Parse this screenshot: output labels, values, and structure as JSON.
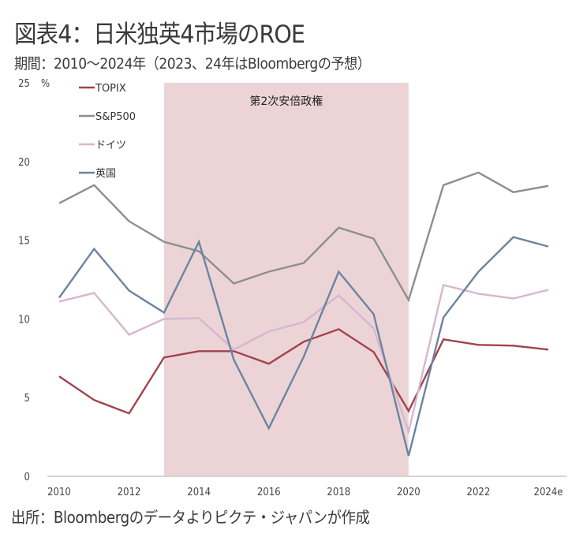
{
  "header": {
    "title": "図表4：日米独英4市場のROE",
    "subtitle": "期間：2010～2024年（2023、24年はBloombergの予想）"
  },
  "footer": {
    "source": "出所：Bloombergのデータよりピクテ・ジャパンが作成"
  },
  "chart_data": {
    "type": "line",
    "title": "日米独英4市場のROE",
    "xlabel": "",
    "ylabel": "%",
    "x": [
      2010,
      2011,
      2012,
      2013,
      2014,
      2015,
      2016,
      2017,
      2018,
      2019,
      2020,
      2021,
      2022,
      2023,
      2024
    ],
    "x_tick_labels": [
      "2010",
      "2012",
      "2014",
      "2016",
      "2018",
      "2020",
      "2022",
      "2024e"
    ],
    "x_tick_values": [
      2010,
      2012,
      2014,
      2016,
      2018,
      2020,
      2022,
      2024
    ],
    "y_ticks": [
      0,
      5,
      10,
      15,
      20,
      25
    ],
    "y_unit": "%",
    "ylim": [
      0,
      25
    ],
    "xlim": [
      2010,
      2024
    ],
    "grid": false,
    "legend_position": "top-left",
    "shaded_region": {
      "start": 2013,
      "end": 2020,
      "label": "第2次安倍政権",
      "color": "#ecd4d6"
    },
    "series": [
      {
        "name": "TOPIX",
        "color": "#a0434c",
        "values": [
          6.35,
          4.85,
          4.0,
          7.55,
          7.95,
          7.95,
          7.15,
          8.55,
          9.35,
          7.9,
          4.15,
          8.7,
          8.35,
          8.3,
          8.05
        ]
      },
      {
        "name": "S&P500",
        "color": "#8e8e8e",
        "values": [
          17.35,
          18.5,
          16.2,
          14.9,
          14.3,
          12.25,
          13.0,
          13.55,
          15.8,
          15.1,
          11.2,
          18.5,
          19.3,
          18.05,
          18.45
        ]
      },
      {
        "name": "ドイツ",
        "color": "#d6b7cf",
        "values": [
          11.1,
          11.65,
          9.0,
          10.0,
          10.05,
          8.05,
          9.2,
          9.8,
          11.5,
          9.4,
          2.85,
          12.15,
          11.6,
          11.3,
          11.85
        ]
      },
      {
        "name": "英国",
        "color": "#6b84a2",
        "values": [
          11.35,
          14.45,
          11.8,
          10.4,
          14.9,
          7.4,
          3.05,
          7.6,
          13.0,
          10.3,
          1.3,
          10.1,
          13.0,
          15.2,
          14.6
        ]
      }
    ]
  }
}
